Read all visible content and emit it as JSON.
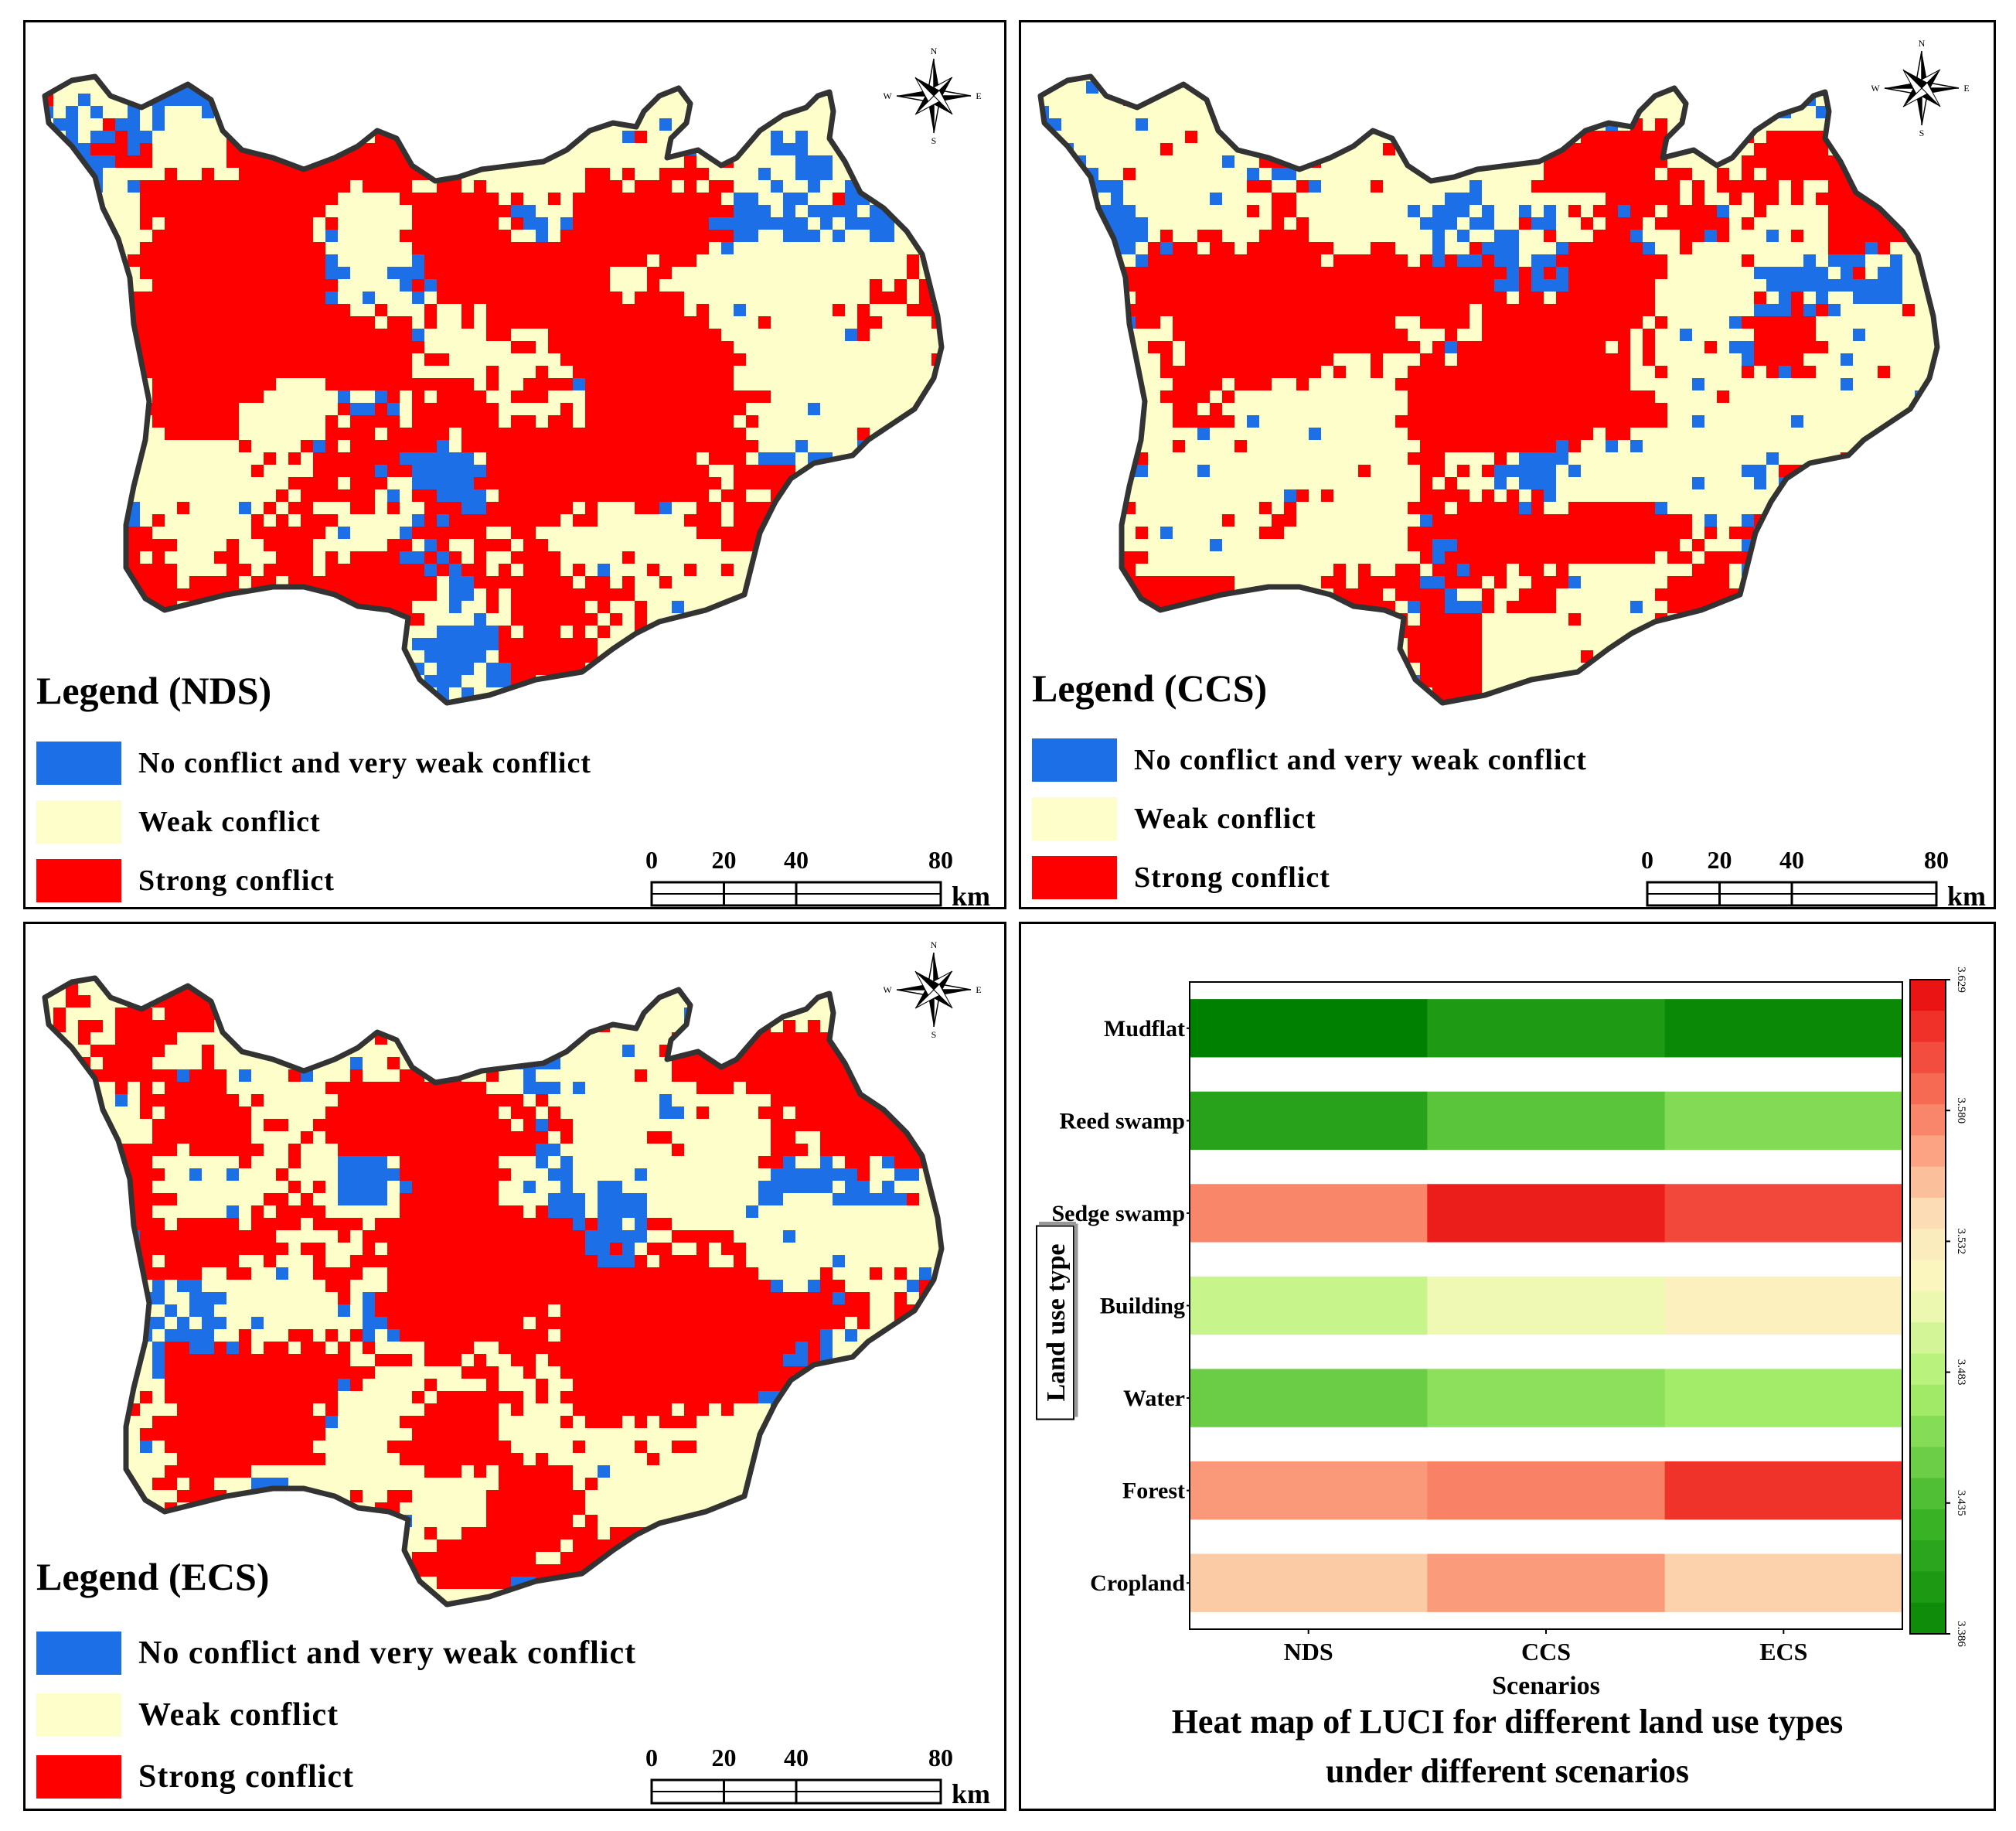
{
  "colors": {
    "no_conflict": "#1d6fe8",
    "weak": "#fefecb",
    "strong": "#ff0000",
    "outline": "#333333"
  },
  "maps": [
    {
      "id": "nds",
      "legend_title": "Legend (NDS)",
      "items": [
        {
          "key": "no_conflict",
          "label": "No conflict and very weak conflict"
        },
        {
          "key": "weak",
          "label": "Weak conflict"
        },
        {
          "key": "strong",
          "label": "Strong conflict"
        }
      ]
    },
    {
      "id": "ccs",
      "legend_title": "Legend (CCS)",
      "items": [
        {
          "key": "no_conflict",
          "label": "No conflict and very weak conflict"
        },
        {
          "key": "weak",
          "label": "Weak conflict"
        },
        {
          "key": "strong",
          "label": "Strong conflict"
        }
      ]
    },
    {
      "id": "ecs",
      "legend_title": "Legend (ECS)",
      "items": [
        {
          "key": "no_conflict",
          "label": "No conflict and very weak conflict"
        },
        {
          "key": "weak",
          "label": "Weak conflict"
        },
        {
          "key": "strong",
          "label": "Strong conflict"
        }
      ]
    }
  ],
  "compass": {
    "n": "N",
    "s": "S",
    "e": "E",
    "w": "W"
  },
  "scalebar": {
    "ticks": [
      "0",
      "20",
      "40",
      "80"
    ],
    "unit": "km"
  },
  "chart_data": {
    "type": "heatmap",
    "title": "Heat map of LUCI for different land use types under different scenarios",
    "title_lines": [
      "Heat map of LUCI for different land use types",
      "under different scenarios"
    ],
    "xlabel": "Scenarios",
    "ylabel": "Land use type",
    "x_categories": [
      "NDS",
      "CCS",
      "ECS"
    ],
    "y_categories": [
      "Mudflat",
      "Reed swamp",
      "Sedge swamp",
      "Building",
      "Water",
      "Forest",
      "Cropland"
    ],
    "values": [
      [
        3.386,
        3.41,
        3.394
      ],
      [
        3.418,
        3.448,
        3.466
      ],
      [
        3.583,
        3.625,
        3.608
      ],
      [
        3.497,
        3.515,
        3.532
      ],
      [
        3.455,
        3.47,
        3.48
      ],
      [
        3.575,
        3.585,
        3.617
      ],
      [
        3.555,
        3.574,
        3.552
      ]
    ],
    "colorbar": {
      "min": 3.386,
      "max": 3.629,
      "ticks": [
        "3.386",
        "3.435",
        "3.483",
        "3.532",
        "3.580",
        "3.629"
      ]
    }
  }
}
